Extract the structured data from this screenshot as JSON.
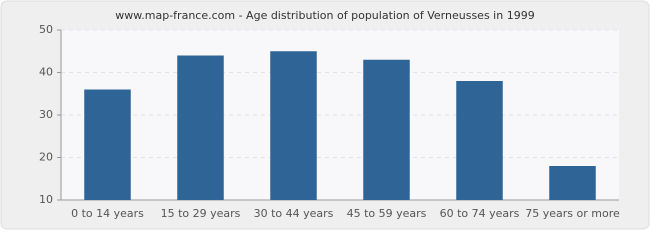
{
  "chart_data": {
    "type": "bar",
    "title": "www.map-france.com - Age distribution of population of Verneusses in 1999",
    "categories": [
      "0 to 14 years",
      "15 to 29 years",
      "30 to 44 years",
      "45 to 59 years",
      "60 to 74 years",
      "75 years or more"
    ],
    "values": [
      36,
      44,
      45,
      43,
      38,
      18
    ],
    "color": "#2e6496",
    "ylim": [
      10,
      50
    ],
    "yticks": [
      10,
      20,
      30,
      40,
      50
    ],
    "grid": true
  }
}
